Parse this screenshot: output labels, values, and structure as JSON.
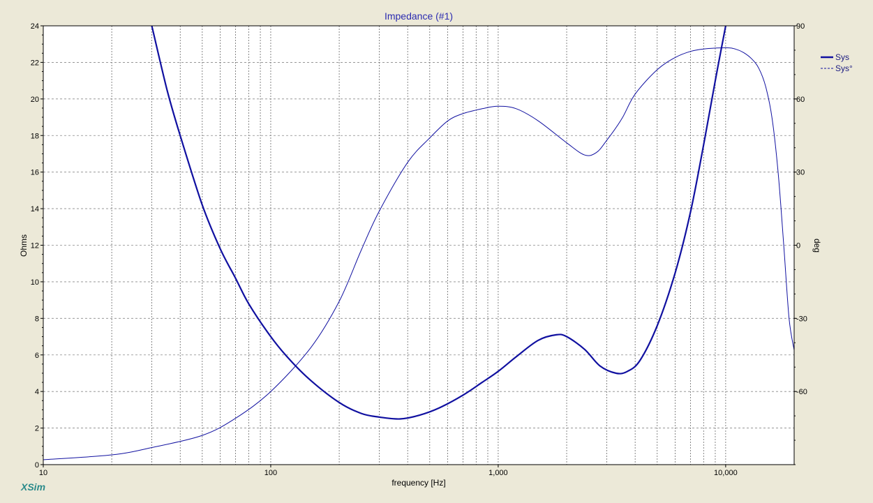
{
  "window": {
    "brand": "XSim"
  },
  "chart_data": {
    "type": "line",
    "title": "Impedance (#1)",
    "xlabel": "frequency [Hz]",
    "ylabel": "Ohms",
    "y2label": "deg",
    "xscale": "log",
    "xlim": [
      10,
      20000
    ],
    "ylim": [
      0,
      24
    ],
    "y2lim": [
      -90,
      90
    ],
    "xticks": [
      10,
      100,
      1000,
      10000
    ],
    "xtick_labels": [
      "10",
      "100",
      "1,000",
      "10,000"
    ],
    "yticks": [
      0,
      2,
      4,
      6,
      8,
      10,
      12,
      14,
      16,
      18,
      20,
      22,
      24
    ],
    "y2ticks": [
      -60,
      -30,
      0,
      30,
      60,
      90
    ],
    "grid": true,
    "legend_position": "right",
    "series": [
      {
        "name": "Sys",
        "axis": "left",
        "style": "solid",
        "color": "#1010a0",
        "x": [
          30,
          35,
          40,
          50,
          60,
          70,
          80,
          100,
          120,
          150,
          200,
          250,
          300,
          370,
          450,
          550,
          700,
          850,
          1000,
          1200,
          1500,
          1800,
          2000,
          2400,
          2800,
          3300,
          3700,
          4200,
          5000,
          6000,
          7000,
          8000,
          9000,
          10000
        ],
        "values": [
          24,
          20.5,
          18,
          14.2,
          11.8,
          10.2,
          8.8,
          7,
          5.8,
          4.6,
          3.4,
          2.8,
          2.6,
          2.5,
          2.7,
          3.1,
          3.8,
          4.5,
          5.1,
          5.9,
          6.8,
          7.1,
          7.0,
          6.3,
          5.4,
          5.0,
          5.1,
          5.7,
          7.6,
          10.5,
          13.8,
          17.5,
          21,
          24
        ]
      },
      {
        "name": "Sys°",
        "axis": "right",
        "style": "dashed",
        "color": "#1010a0",
        "x": [
          10,
          20,
          30,
          50,
          70,
          100,
          150,
          200,
          250,
          300,
          400,
          500,
          600,
          700,
          850,
          1000,
          1200,
          1500,
          2000,
          2400,
          2700,
          3000,
          3500,
          4000,
          5000,
          6000,
          7000,
          8000,
          10000,
          11000,
          12000,
          13000,
          14000,
          15000,
          16000,
          17000,
          18000,
          19000,
          20000
        ],
        "values": [
          -88,
          -86,
          -83,
          -78,
          -71,
          -60,
          -42,
          -23,
          -2,
          14,
          34,
          44,
          51,
          54,
          56,
          57,
          56,
          51,
          42,
          37,
          38,
          43,
          52,
          62,
          72,
          77,
          79.5,
          80.5,
          81,
          80.5,
          79,
          76.5,
          72.5,
          65,
          52,
          30,
          0,
          -30,
          -43
        ]
      }
    ]
  }
}
